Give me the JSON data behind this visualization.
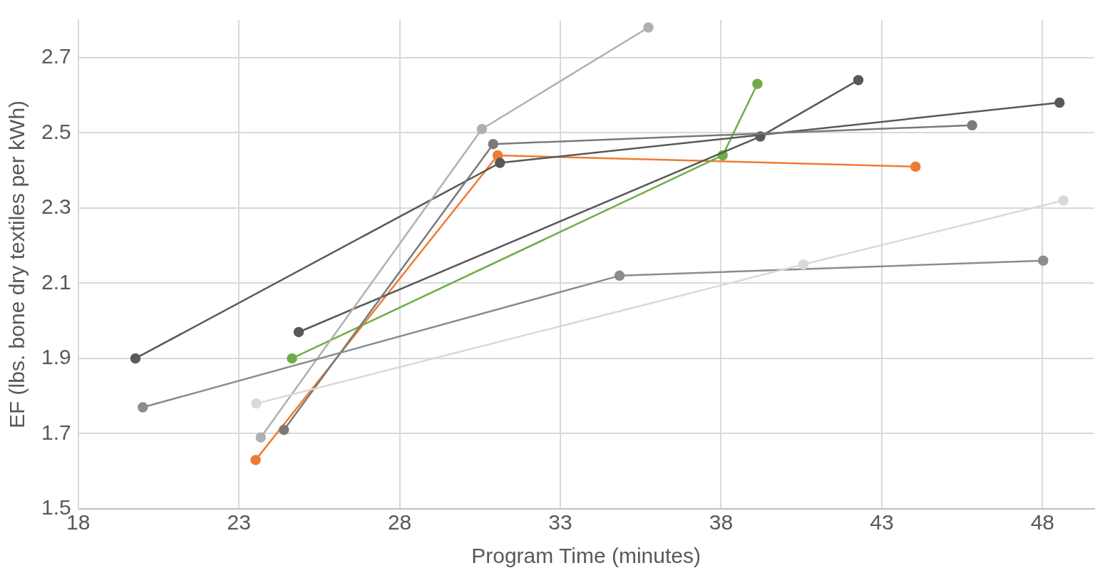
{
  "chart_data": {
    "type": "line",
    "xlabel": "Program Time (minutes)",
    "ylabel": "EF (lbs. bone dry textiles per kWh)",
    "xlim": [
      18,
      49.6
    ],
    "xticks": [
      18,
      23,
      28,
      33,
      38,
      43,
      48
    ],
    "ylim": [
      1.5,
      2.8
    ],
    "yticks": [
      1.5,
      1.7,
      1.9,
      2.1,
      2.3,
      2.5,
      2.7
    ],
    "grid": true,
    "legend": false,
    "marker": "circle",
    "line_style": "solid",
    "series": [
      {
        "color": "#d9d9d9",
        "x": [
          23.54,
          40.56,
          48.65
        ],
        "values": [
          1.78,
          2.15,
          2.32
        ]
      },
      {
        "color": "#8c8c8c",
        "x": [
          20.01,
          34.84,
          48.02
        ],
        "values": [
          1.77,
          2.12,
          2.16
        ]
      },
      {
        "color": "#b0b0b0",
        "x": [
          23.68,
          30.56,
          35.74
        ],
        "values": [
          1.69,
          2.51,
          2.78
        ]
      },
      {
        "color": "#7a7a7a",
        "x": [
          24.4,
          30.91,
          45.81
        ],
        "values": [
          1.71,
          2.47,
          2.52
        ]
      },
      {
        "color": "#595959",
        "x": [
          19.78,
          31.12,
          48.53
        ],
        "values": [
          1.9,
          2.42,
          2.58
        ]
      },
      {
        "color": "#595959",
        "x": [
          24.86,
          39.22,
          42.27
        ],
        "values": [
          1.97,
          2.49,
          2.64
        ]
      },
      {
        "color": "#70ad47",
        "x": [
          24.65,
          38.05,
          39.13
        ],
        "values": [
          1.9,
          2.44,
          2.63
        ]
      },
      {
        "color": "#ed7d31",
        "x": [
          23.52,
          31.05,
          44.05
        ],
        "values": [
          1.63,
          2.44,
          2.41
        ]
      }
    ]
  }
}
